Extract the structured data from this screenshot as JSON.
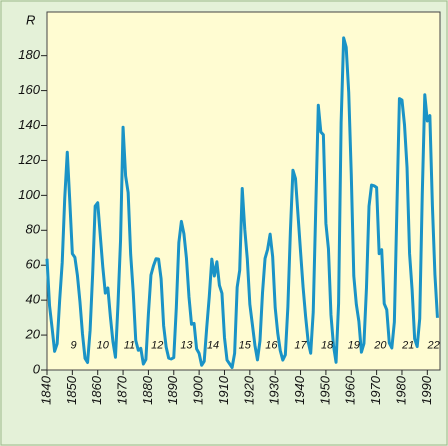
{
  "chart_data": {
    "type": "line",
    "y_label": "R",
    "x": [
      1840,
      1841,
      1842,
      1843,
      1844,
      1845,
      1846,
      1847,
      1848,
      1849,
      1850,
      1851,
      1852,
      1853,
      1854,
      1855,
      1856,
      1857,
      1858,
      1859,
      1860,
      1861,
      1862,
      1863,
      1864,
      1865,
      1866,
      1867,
      1868,
      1869,
      1870,
      1871,
      1872,
      1873,
      1874,
      1875,
      1876,
      1877,
      1878,
      1879,
      1880,
      1881,
      1882,
      1883,
      1884,
      1885,
      1886,
      1887,
      1888,
      1889,
      1890,
      1891,
      1892,
      1893,
      1894,
      1895,
      1896,
      1897,
      1898,
      1899,
      1900,
      1901,
      1902,
      1903,
      1904,
      1905,
      1906,
      1907,
      1908,
      1909,
      1910,
      1911,
      1912,
      1913,
      1914,
      1915,
      1916,
      1917,
      1918,
      1919,
      1920,
      1921,
      1922,
      1923,
      1924,
      1925,
      1926,
      1927,
      1928,
      1929,
      1930,
      1931,
      1932,
      1933,
      1934,
      1935,
      1936,
      1937,
      1938,
      1939,
      1940,
      1941,
      1942,
      1943,
      1944,
      1945,
      1946,
      1947,
      1948,
      1949,
      1950,
      1951,
      1952,
      1953,
      1954,
      1955,
      1956,
      1957,
      1958,
      1959,
      1960,
      1961,
      1962,
      1963,
      1964,
      1965,
      1966,
      1967,
      1968,
      1969,
      1970,
      1971,
      1972,
      1973,
      1974,
      1975,
      1976,
      1977,
      1978,
      1979,
      1980,
      1981,
      1982,
      1983,
      1984,
      1985,
      1986,
      1987,
      1988,
      1989,
      1990,
      1991,
      1992,
      1993,
      1994
    ],
    "series": [
      {
        "name": "R",
        "color": "#1a93c6",
        "values": [
          63.7,
          36.8,
          24.2,
          10.7,
          15.0,
          40.1,
          61.5,
          98.5,
          124.7,
          96.3,
          66.6,
          64.5,
          54.1,
          39.0,
          20.6,
          6.7,
          4.3,
          22.7,
          54.8,
          93.8,
          95.8,
          77.2,
          59.1,
          44.0,
          47.0,
          30.5,
          16.3,
          7.3,
          37.6,
          74.0,
          139.0,
          111.2,
          101.6,
          66.2,
          44.7,
          17.0,
          11.3,
          12.4,
          3.4,
          6.0,
          32.3,
          54.3,
          59.7,
          63.7,
          63.5,
          52.2,
          25.4,
          13.1,
          6.8,
          6.3,
          7.1,
          35.6,
          73.0,
          85.1,
          78.0,
          64.0,
          41.8,
          26.2,
          26.7,
          12.1,
          9.5,
          2.7,
          5.0,
          24.4,
          42.0,
          63.5,
          53.8,
          62.0,
          48.5,
          43.9,
          18.6,
          5.7,
          3.6,
          1.4,
          9.6,
          47.4,
          57.1,
          103.9,
          80.6,
          63.6,
          37.6,
          26.1,
          14.2,
          5.8,
          16.7,
          44.3,
          63.9,
          69.0,
          77.8,
          64.9,
          35.7,
          21.2,
          11.1,
          5.7,
          8.7,
          36.1,
          79.7,
          114.4,
          109.6,
          88.8,
          67.8,
          47.5,
          30.6,
          16.3,
          9.6,
          33.2,
          92.6,
          151.6,
          136.3,
          134.7,
          83.9,
          69.4,
          31.5,
          13.9,
          4.4,
          38.0,
          141.7,
          190.2,
          184.8,
          159.0,
          112.3,
          53.9,
          37.6,
          27.9,
          10.2,
          15.1,
          47.0,
          93.8,
          105.9,
          105.5,
          104.5,
          66.6,
          68.9,
          38.0,
          34.5,
          15.5,
          12.6,
          27.5,
          92.5,
          155.4,
          154.6,
          140.4,
          115.9,
          66.6,
          45.9,
          17.9,
          13.4,
          29.4,
          100.2,
          157.6,
          142.6,
          145.7,
          94.3,
          54.6,
          29.9
        ]
      }
    ],
    "annotations": [
      {
        "text": "9",
        "x": 1850.5,
        "y": 14
      },
      {
        "text": "10",
        "x": 1862,
        "y": 14
      },
      {
        "text": "11",
        "x": 1872.5,
        "y": 14
      },
      {
        "text": "12",
        "x": 1883.5,
        "y": 14
      },
      {
        "text": "13",
        "x": 1895,
        "y": 14
      },
      {
        "text": "14",
        "x": 1905.5,
        "y": 14
      },
      {
        "text": "15",
        "x": 1918,
        "y": 14
      },
      {
        "text": "16",
        "x": 1928.5,
        "y": 14
      },
      {
        "text": "17",
        "x": 1940,
        "y": 14
      },
      {
        "text": "18",
        "x": 1950.5,
        "y": 14
      },
      {
        "text": "19",
        "x": 1961,
        "y": 14
      },
      {
        "text": "20",
        "x": 1971.5,
        "y": 14
      },
      {
        "text": "21",
        "x": 1982.5,
        "y": 14
      },
      {
        "text": "22",
        "x": 1992.5,
        "y": 14
      }
    ],
    "xlim": [
      1840,
      1995
    ],
    "xticks": [
      1840,
      1850,
      1860,
      1870,
      1880,
      1890,
      1900,
      1910,
      1920,
      1930,
      1940,
      1950,
      1960,
      1970,
      1980,
      1990
    ],
    "ylim": [
      0,
      205
    ],
    "yticks": [
      0,
      20,
      40,
      60,
      80,
      100,
      120,
      140,
      160,
      180
    ]
  }
}
